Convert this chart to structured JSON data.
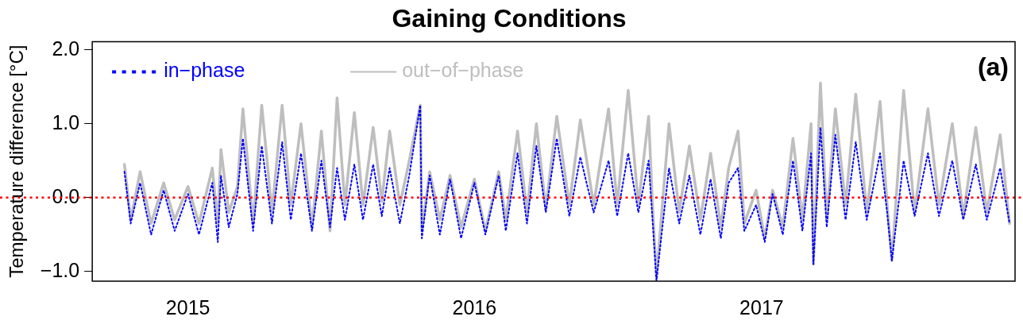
{
  "chart_data": {
    "type": "line",
    "title": "Gaining Conditions",
    "ylabel": "Temperature difference [°C]",
    "x": [
      "2014-10-12",
      "2014-10-20",
      "2014-11-01",
      "2014-11-15",
      "2014-12-01",
      "2014-12-15",
      "2015-01-01",
      "2015-01-15",
      "2015-02-01",
      "2015-02-08",
      "2015-02-12",
      "2015-02-22",
      "2015-03-05",
      "2015-03-12",
      "2015-03-25",
      "2015-04-05",
      "2015-04-18",
      "2015-05-01",
      "2015-05-12",
      "2015-05-25",
      "2015-06-08",
      "2015-06-20",
      "2015-07-01",
      "2015-07-10",
      "2015-07-20",
      "2015-08-01",
      "2015-08-12",
      "2015-08-25",
      "2015-09-05",
      "2015-09-15",
      "2015-09-28",
      "2015-10-10",
      "2015-10-24",
      "2015-10-26",
      "2015-11-05",
      "2015-11-18",
      "2015-12-01",
      "2015-12-15",
      "2016-01-01",
      "2016-01-15",
      "2016-02-01",
      "2016-02-10",
      "2016-02-25",
      "2016-03-08",
      "2016-03-20",
      "2016-04-01",
      "2016-04-15",
      "2016-05-01",
      "2016-05-15",
      "2016-06-01",
      "2016-06-20",
      "2016-07-01",
      "2016-07-15",
      "2016-07-28",
      "2016-08-10",
      "2016-08-15",
      "2016-08-20",
      "2016-09-05",
      "2016-09-18",
      "2016-10-01",
      "2016-10-15",
      "2016-10-28",
      "2016-11-10",
      "2016-11-20",
      "2016-12-02",
      "2016-12-10",
      "2016-12-25",
      "2017-01-05",
      "2017-01-15",
      "2017-01-28",
      "2017-02-10",
      "2017-02-22",
      "2017-03-05",
      "2017-03-08",
      "2017-03-17",
      "2017-03-25",
      "2017-04-05",
      "2017-04-18",
      "2017-05-01",
      "2017-05-15",
      "2017-06-01",
      "2017-06-10",
      "2017-06-16",
      "2017-07-01",
      "2017-07-15",
      "2017-08-01",
      "2017-08-15",
      "2017-09-01",
      "2017-09-15",
      "2017-10-01",
      "2017-10-15",
      "2017-11-01",
      "2017-11-13"
    ],
    "series": [
      {
        "name": "in−phase",
        "color": "#0000ff",
        "line_style": "dotted",
        "values": [
          0.35,
          -0.35,
          0.2,
          -0.5,
          0.1,
          -0.45,
          0.05,
          -0.5,
          0.2,
          -0.6,
          0.3,
          -0.4,
          0.05,
          0.8,
          -0.45,
          0.7,
          -0.35,
          0.75,
          -0.3,
          0.6,
          -0.45,
          0.5,
          -0.4,
          0.4,
          -0.3,
          0.45,
          -0.3,
          0.45,
          -0.25,
          0.4,
          -0.35,
          0.3,
          1.25,
          -0.55,
          0.3,
          -0.5,
          0.25,
          -0.55,
          0.2,
          -0.5,
          0.3,
          -0.45,
          0.6,
          -0.35,
          0.7,
          -0.2,
          0.8,
          -0.25,
          0.55,
          -0.2,
          0.5,
          -0.25,
          0.6,
          -0.2,
          0.5,
          -0.3,
          -1.12,
          0.4,
          -0.35,
          0.3,
          -0.5,
          0.25,
          -0.55,
          0.2,
          0.4,
          -0.45,
          -0.1,
          -0.6,
          0.05,
          -0.5,
          0.5,
          -0.45,
          0.6,
          -0.9,
          0.95,
          -0.4,
          0.85,
          -0.3,
          0.75,
          -0.3,
          0.6,
          -0.2,
          -0.85,
          0.5,
          -0.25,
          0.6,
          -0.25,
          0.5,
          -0.3,
          0.45,
          -0.3,
          0.4,
          -0.35
        ]
      },
      {
        "name": "out−of−phase",
        "color": "#bebebe",
        "line_style": "solid",
        "values": [
          0.45,
          -0.3,
          0.35,
          -0.35,
          0.2,
          -0.3,
          0.15,
          -0.35,
          0.4,
          -0.35,
          0.65,
          -0.2,
          0.15,
          1.2,
          -0.35,
          1.25,
          -0.2,
          1.25,
          -0.1,
          1.0,
          -0.4,
          0.9,
          -0.45,
          1.35,
          -0.1,
          1.15,
          -0.1,
          0.95,
          -0.05,
          0.9,
          -0.1,
          0.5,
          1.25,
          -0.45,
          0.35,
          -0.3,
          0.3,
          -0.4,
          0.25,
          -0.45,
          0.35,
          -0.3,
          0.9,
          -0.2,
          1.0,
          -0.15,
          1.1,
          -0.1,
          1.05,
          -0.1,
          1.2,
          -0.1,
          1.45,
          -0.1,
          1.1,
          -0.1,
          -1.08,
          1.0,
          -0.2,
          0.7,
          -0.3,
          0.6,
          -0.4,
          0.4,
          0.9,
          -0.35,
          0.1,
          -0.55,
          0.1,
          -0.4,
          0.8,
          -0.3,
          1.0,
          -0.9,
          1.55,
          -0.3,
          1.2,
          -0.1,
          1.4,
          -0.2,
          1.3,
          -0.1,
          -0.85,
          1.45,
          -0.2,
          1.2,
          -0.1,
          1.0,
          -0.25,
          0.95,
          -0.2,
          0.85,
          -0.35
        ]
      }
    ],
    "xlim": [
      "2014-09-01",
      "2017-11-20"
    ],
    "xticks": [
      {
        "value": "2015-01-01",
        "label": "2015"
      },
      {
        "value": "2016-01-01",
        "label": "2016"
      },
      {
        "value": "2017-01-01",
        "label": "2017"
      }
    ],
    "ylim": [
      -1.13,
      2.11
    ],
    "yticks": [
      {
        "value": -1,
        "label": "−1.0"
      },
      {
        "value": 0,
        "label": "0.0"
      },
      {
        "value": 1,
        "label": "1.0"
      },
      {
        "value": 2,
        "label": "2.0"
      }
    ],
    "ref_lines": [
      {
        "axis": "y",
        "value": 0,
        "color": "#ff0000",
        "line_style": "dotted"
      }
    ],
    "annotations": [
      "(a)"
    ],
    "legend": "top left",
    "grid": false,
    "marker": "none"
  }
}
